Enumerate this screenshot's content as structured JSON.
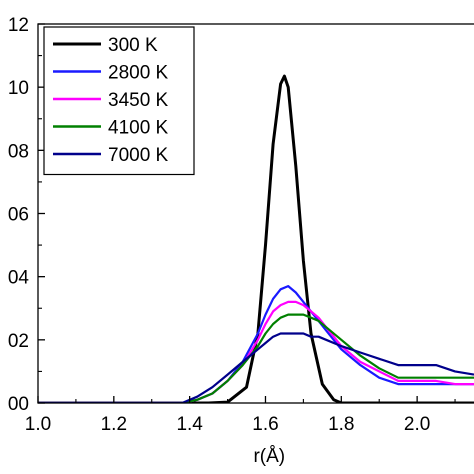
{
  "chart_data": {
    "type": "line",
    "title": "",
    "xlabel": "r(Å)",
    "ylabel": "",
    "xlim": [
      1.0,
      2.15
    ],
    "ylim": [
      0.0,
      0.12
    ],
    "x_ticks": [
      1.0,
      1.2,
      1.4,
      1.6,
      1.8,
      2.0
    ],
    "x_tick_labels": [
      "1.0",
      "1.2",
      "1.4",
      "1.6",
      "1.8",
      "2.0"
    ],
    "y_ticks": [
      0.0,
      0.02,
      0.04,
      0.06,
      0.08,
      0.1,
      0.12
    ],
    "y_tick_labels": [
      "00",
      "02",
      "04",
      "06",
      "08",
      "10",
      "12"
    ],
    "grid": false,
    "legend_position": "top-left",
    "series": [
      {
        "name": "300 K",
        "color": "#000000",
        "x": [
          1.0,
          1.45,
          1.5,
          1.55,
          1.58,
          1.6,
          1.62,
          1.64,
          1.65,
          1.66,
          1.68,
          1.7,
          1.72,
          1.75,
          1.78,
          1.8,
          2.15
        ],
        "y": [
          0.0,
          0.0,
          0.0003,
          0.005,
          0.022,
          0.05,
          0.082,
          0.101,
          0.1035,
          0.1,
          0.075,
          0.045,
          0.022,
          0.006,
          0.001,
          0.0,
          0.0
        ]
      },
      {
        "name": "2800 K",
        "color": "#1a1aff",
        "x": [
          1.0,
          1.38,
          1.42,
          1.46,
          1.5,
          1.54,
          1.58,
          1.6,
          1.62,
          1.64,
          1.66,
          1.68,
          1.7,
          1.72,
          1.74,
          1.76,
          1.8,
          1.85,
          1.9,
          1.95,
          2.0,
          2.05,
          2.1,
          2.15
        ],
        "y": [
          0.0,
          0.0,
          0.001,
          0.003,
          0.007,
          0.013,
          0.022,
          0.028,
          0.033,
          0.036,
          0.037,
          0.035,
          0.032,
          0.029,
          0.026,
          0.023,
          0.017,
          0.012,
          0.008,
          0.006,
          0.006,
          0.006,
          0.006,
          0.006
        ]
      },
      {
        "name": "3450 K",
        "color": "#ff00ff",
        "x": [
          1.0,
          1.38,
          1.42,
          1.46,
          1.5,
          1.54,
          1.58,
          1.6,
          1.62,
          1.64,
          1.66,
          1.68,
          1.7,
          1.72,
          1.74,
          1.76,
          1.8,
          1.85,
          1.9,
          1.95,
          2.0,
          2.05,
          2.1,
          2.15
        ],
        "y": [
          0.0,
          0.0,
          0.001,
          0.003,
          0.007,
          0.012,
          0.02,
          0.025,
          0.029,
          0.031,
          0.032,
          0.032,
          0.031,
          0.029,
          0.027,
          0.024,
          0.018,
          0.013,
          0.01,
          0.007,
          0.007,
          0.007,
          0.006,
          0.006
        ]
      },
      {
        "name": "4100 K",
        "color": "#008000",
        "x": [
          1.0,
          1.38,
          1.42,
          1.46,
          1.5,
          1.54,
          1.58,
          1.6,
          1.62,
          1.64,
          1.66,
          1.68,
          1.7,
          1.72,
          1.74,
          1.76,
          1.8,
          1.85,
          1.9,
          1.95,
          2.0,
          2.05,
          2.1,
          2.15
        ],
        "y": [
          0.0,
          0.0,
          0.001,
          0.003,
          0.007,
          0.012,
          0.018,
          0.022,
          0.025,
          0.027,
          0.028,
          0.028,
          0.028,
          0.027,
          0.026,
          0.024,
          0.02,
          0.015,
          0.011,
          0.008,
          0.008,
          0.008,
          0.008,
          0.008
        ]
      },
      {
        "name": "7000 K",
        "color": "#00008b",
        "x": [
          1.0,
          1.38,
          1.42,
          1.46,
          1.5,
          1.54,
          1.58,
          1.6,
          1.62,
          1.64,
          1.66,
          1.68,
          1.7,
          1.72,
          1.74,
          1.76,
          1.8,
          1.85,
          1.9,
          1.95,
          2.0,
          2.05,
          2.1,
          2.15
        ],
        "y": [
          0.0,
          0.0,
          0.002,
          0.005,
          0.009,
          0.013,
          0.017,
          0.019,
          0.021,
          0.022,
          0.022,
          0.022,
          0.022,
          0.021,
          0.021,
          0.02,
          0.018,
          0.016,
          0.014,
          0.012,
          0.012,
          0.012,
          0.01,
          0.009
        ]
      }
    ]
  }
}
